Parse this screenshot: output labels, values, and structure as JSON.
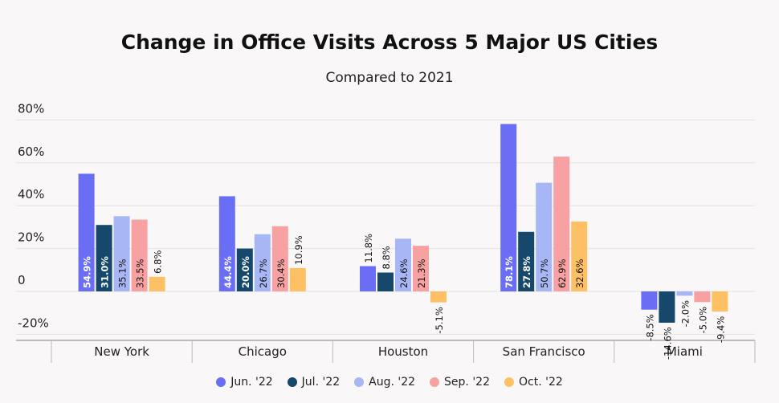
{
  "chart_data": {
    "type": "bar",
    "title": "Change in Office Visits Across 5 Major US Cities",
    "subtitle": "Compared to 2021",
    "categories": [
      "New York",
      "Chicago",
      "Houston",
      "San Francisco",
      "Miami"
    ],
    "series": [
      {
        "name": "Jun. '22",
        "color": "#6a6ef5",
        "values": [
          54.9,
          44.4,
          11.8,
          78.1,
          -8.5
        ],
        "labels": [
          "54.9%",
          "44.4%",
          "11.8%",
          "78.1%",
          "-8.5%"
        ]
      },
      {
        "name": "Jul. '22",
        "color": "#15486a",
        "values": [
          31.0,
          20.0,
          8.8,
          27.8,
          -14.6
        ],
        "labels": [
          "31.0%",
          "20.0%",
          "8.8%",
          "27.8%",
          "-14.6%"
        ]
      },
      {
        "name": "Aug. '22",
        "color": "#a7b6f4",
        "values": [
          35.1,
          26.7,
          24.6,
          50.7,
          -2.0
        ],
        "labels": [
          "35.1%",
          "26.7%",
          "24.6%",
          "50.7%",
          "-2.0%"
        ]
      },
      {
        "name": "Sep. '22",
        "color": "#f7a1a2",
        "values": [
          33.5,
          30.4,
          21.3,
          62.9,
          -5.0
        ],
        "labels": [
          "33.5%",
          "30.4%",
          "21.3%",
          "62.9%",
          "-5.0%"
        ]
      },
      {
        "name": "Oct. '22",
        "color": "#fec065",
        "values": [
          6.8,
          10.9,
          -5.1,
          32.6,
          -9.4
        ],
        "labels": [
          "6.8%",
          "10.9%",
          "-5.1%",
          "32.6%",
          "-9.4%"
        ]
      }
    ],
    "yticks": [
      80,
      60,
      40,
      20,
      0,
      -20
    ],
    "ytick_labels": [
      "80%",
      "60%",
      "40%",
      "20%",
      "0",
      "-20%"
    ],
    "ylim": [
      -20,
      80
    ],
    "grid": true,
    "legend_position": "bottom"
  }
}
